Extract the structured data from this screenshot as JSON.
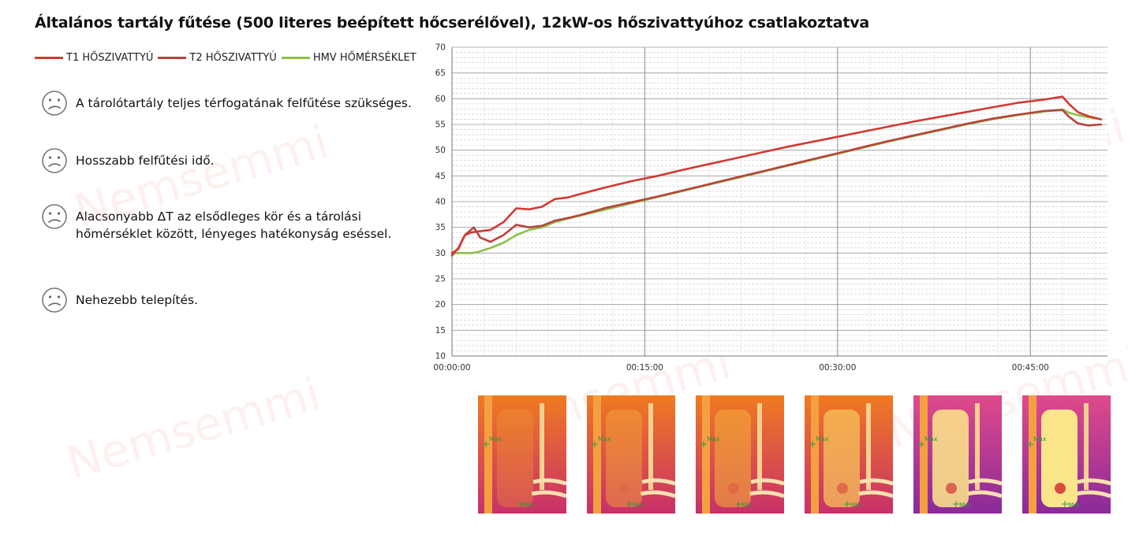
{
  "title": "Általános tartály fűtése (500 literes beépített hőcserélővel), 12kW-os hőszivattyúhoz csatlakoztatva",
  "bullets": [
    {
      "text": "A tárolótartály teljes térfogatának felfűtése szükséges.",
      "icon": "sad-face-icon"
    },
    {
      "text": "Hosszabb felfűtési idő.",
      "icon": "sad-face-icon"
    },
    {
      "text": "Alacsonyabb ΔT az elsődleges kör és a tárolási hőmérséklet között, lényeges hatékonyság eséssel.",
      "icon": "sad-face-icon"
    },
    {
      "text": "Nehezebb telepítés.",
      "icon": "sad-face-icon"
    }
  ],
  "watermark": {
    "text": "Nemsemmi"
  },
  "thermal_labels": {
    "max": "Max",
    "min": "Min"
  },
  "chart_data": {
    "type": "line",
    "title": "",
    "xlabel": "",
    "ylabel": "",
    "ylim": [
      10,
      70
    ],
    "yticks": [
      10,
      15,
      20,
      25,
      30,
      35,
      40,
      45,
      50,
      55,
      60,
      65,
      70
    ],
    "xlim_minutes": [
      0,
      51
    ],
    "xticks": [
      {
        "minute": 0,
        "label": "00:00:00"
      },
      {
        "minute": 15,
        "label": "00:15:00"
      },
      {
        "minute": 30,
        "label": "00:30:00"
      },
      {
        "minute": 45,
        "label": "00:45:00"
      }
    ],
    "grid": true,
    "legend_position": "top-left",
    "series": [
      {
        "name": "T1 HŐSZIVATTYÚ",
        "color": "#d23a32",
        "x": [
          0,
          0.5,
          1,
          1.5,
          2,
          3,
          4,
          5,
          6,
          7,
          8,
          9,
          10,
          12,
          14,
          16,
          18,
          20,
          22,
          24,
          26,
          28,
          30,
          32,
          34,
          36,
          38,
          40,
          42,
          44,
          46,
          47.5,
          48,
          48.7,
          49.5,
          50.5
        ],
        "y": [
          30,
          30.8,
          33.5,
          34,
          34.2,
          34.5,
          36,
          38.7,
          38.5,
          39,
          40.5,
          40.8,
          41.5,
          42.8,
          44,
          45,
          46.2,
          47.3,
          48.4,
          49.5,
          50.6,
          51.6,
          52.6,
          53.6,
          54.6,
          55.6,
          56.5,
          57.4,
          58.3,
          59.2,
          59.8,
          60.4,
          59,
          57.4,
          56.6,
          56
        ]
      },
      {
        "name": "T2 HŐSZIVATTYÚ",
        "color": "#b8443a",
        "x": [
          0,
          0.5,
          1,
          1.7,
          2.2,
          3,
          4,
          5,
          6,
          7,
          8,
          9,
          10,
          12,
          14,
          16,
          18,
          20,
          22,
          24,
          26,
          28,
          30,
          32,
          34,
          36,
          38,
          40,
          42,
          44,
          46,
          47.5,
          48,
          48.7,
          49.5,
          50.5
        ],
        "y": [
          29.5,
          31,
          33.5,
          35,
          33,
          32.2,
          33.5,
          35.5,
          35,
          35.3,
          36.3,
          36.8,
          37.4,
          38.8,
          39.9,
          41,
          42.2,
          43.4,
          44.6,
          45.8,
          47,
          48.2,
          49.4,
          50.6,
          51.8,
          52.9,
          54,
          55.1,
          56.1,
          56.9,
          57.6,
          57.8,
          56.5,
          55.2,
          54.8,
          55
        ]
      },
      {
        "name": "HMV HŐMÉRSÉKLET",
        "color": "#8cc04a",
        "x": [
          0,
          0.5,
          1,
          1.5,
          2,
          3,
          4,
          5,
          6,
          7,
          8,
          9,
          10,
          12,
          14,
          16,
          18,
          20,
          22,
          24,
          26,
          28,
          30,
          32,
          34,
          36,
          38,
          40,
          42,
          44,
          46,
          47.5,
          48,
          48.7,
          49.5,
          50.5
        ],
        "y": [
          30,
          30,
          30,
          30,
          30.2,
          31,
          32,
          33.5,
          34.5,
          35,
          36,
          36.7,
          37.3,
          38.5,
          39.7,
          40.9,
          42.1,
          43.3,
          44.5,
          45.7,
          46.9,
          48.1,
          49.3,
          50.5,
          51.7,
          52.8,
          53.9,
          55,
          56,
          56.8,
          57.5,
          57.9,
          57.3,
          56.8,
          56.4,
          56
        ]
      }
    ]
  },
  "thermal_images_count": 6
}
